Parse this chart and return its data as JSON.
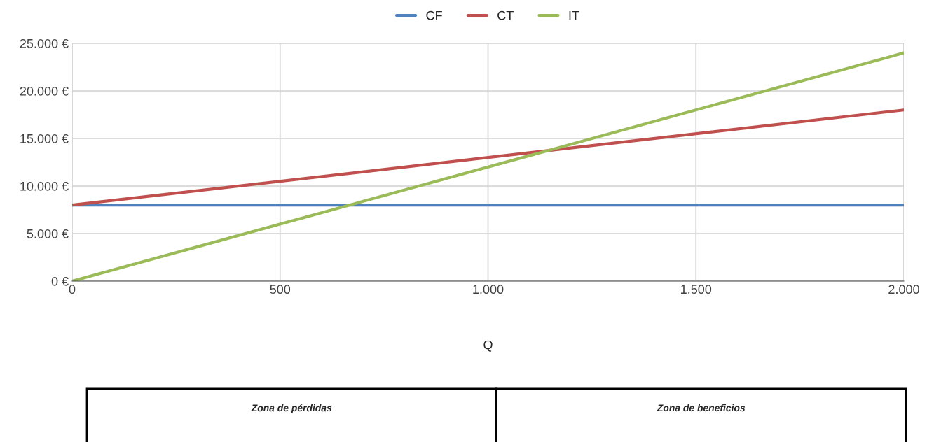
{
  "chart_data": {
    "type": "line",
    "xlabel": "Q",
    "x": [
      0,
      2000
    ],
    "series": [
      {
        "name": "CF",
        "color": "#4f81bd",
        "values": [
          8000,
          8000
        ]
      },
      {
        "name": "CT",
        "color": "#c0504d",
        "values": [
          8000,
          18000
        ]
      },
      {
        "name": "IT",
        "color": "#9bbb59",
        "values": [
          0,
          24000
        ]
      }
    ],
    "xlim": [
      0,
      2000
    ],
    "xticks": [
      0,
      500,
      {
        "value": 1000,
        "label": "1.000"
      },
      {
        "value": 1500,
        "label": "1.500"
      },
      {
        "value": 2000,
        "label": "2.000"
      }
    ],
    "ylim": [
      0,
      25000
    ],
    "yticks": [
      {
        "value": 0,
        "label": "0 €"
      },
      {
        "value": 5000,
        "label": "5.000 €"
      },
      {
        "value": 10000,
        "label": "10.000 €"
      },
      {
        "value": 15000,
        "label": "15.000 €"
      },
      {
        "value": 20000,
        "label": "20.000 €"
      },
      {
        "value": 25000,
        "label": "25.000 €"
      }
    ],
    "grid": true,
    "legend": "top",
    "marker": "none",
    "line_style": "solid",
    "annotations": [
      "Zona de pérdidas",
      "Zona de beneficios"
    ]
  }
}
